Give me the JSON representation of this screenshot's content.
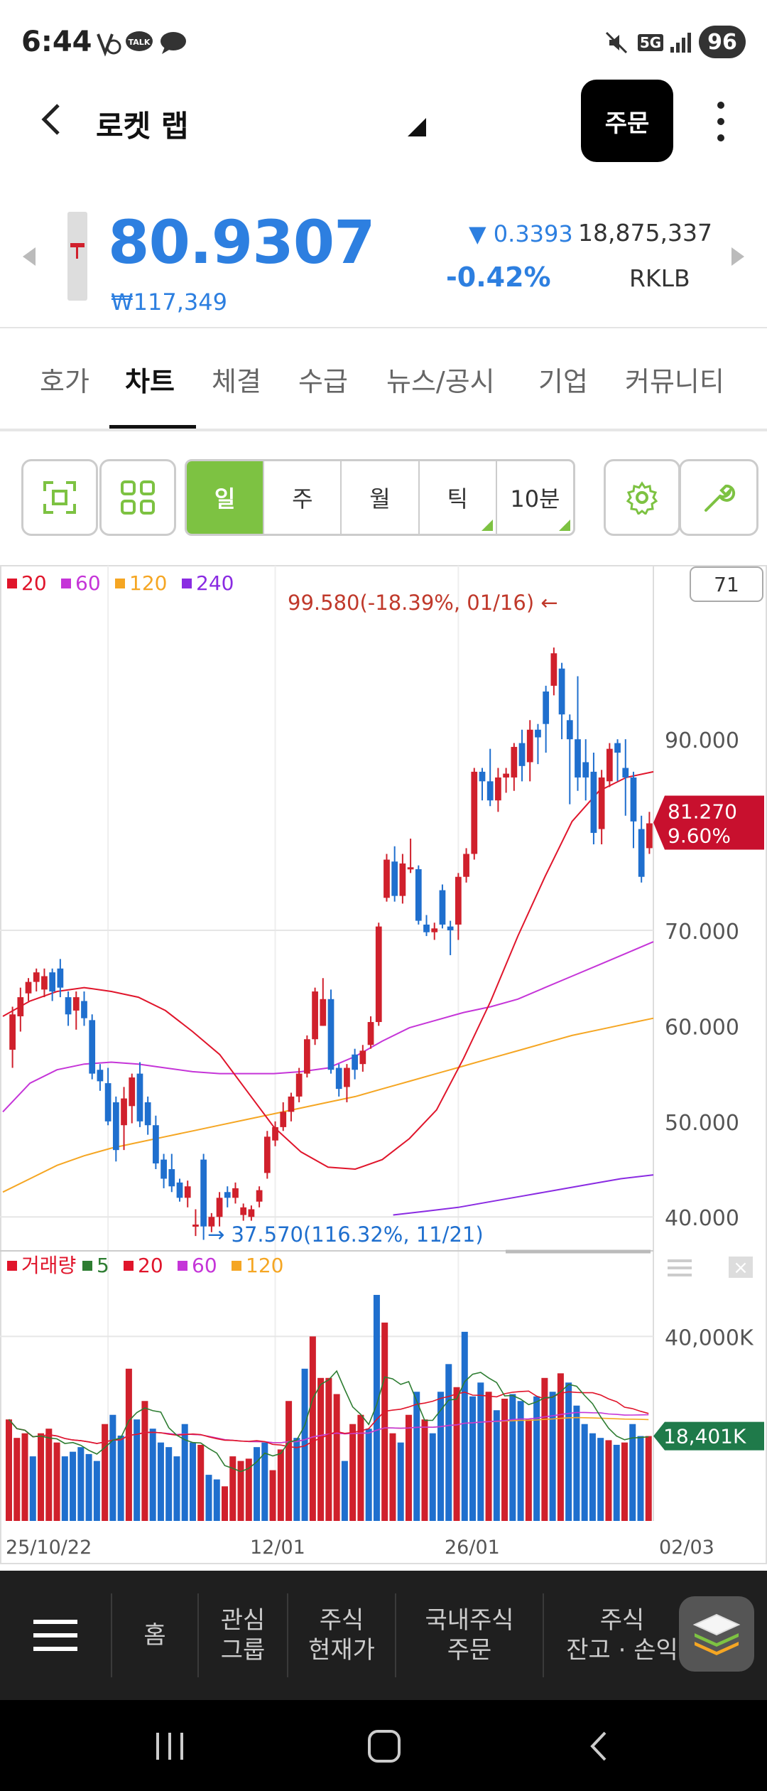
{
  "status": {
    "time": "6:44",
    "battery": "96",
    "signal": "5G"
  },
  "header": {
    "title": "로켓 랩",
    "order_label": "주문"
  },
  "quote": {
    "price": "80.9307",
    "krw": "₩117,349",
    "change": "▼ 0.3393",
    "change_pct": "-0.42%",
    "volume": "18,875,337",
    "ticker": "RKLB"
  },
  "tabs": [
    "호가",
    "차트",
    "체결",
    "수급",
    "뉴스/공시",
    "기업",
    "커뮤니티"
  ],
  "period": {
    "options": [
      "일",
      "주",
      "월",
      "틱",
      "10분"
    ],
    "selected": "일"
  },
  "chart_data": {
    "type": "candlestick",
    "ma_legend": [
      {
        "label": "20",
        "color": "#e0152b"
      },
      {
        "label": "60",
        "color": "#c535d8"
      },
      {
        "label": "120",
        "color": "#f5a623"
      },
      {
        "label": "240",
        "color": "#8a2be2"
      }
    ],
    "count_box": "71",
    "yticks": [
      "90.000",
      "70.000",
      "60.000",
      "50.000",
      "40.000"
    ],
    "ytick_values": [
      90,
      70,
      60,
      50,
      40
    ],
    "ylim": [
      36,
      104
    ],
    "current": {
      "price": "81.270",
      "pct": "9.60%"
    },
    "high_annotation": "99.580(-18.39%, 01/16) ←",
    "low_annotation": "→ 37.570(116.32%, 11/21)",
    "xticks": [
      "25/10/22",
      "12/01",
      "26/01",
      "02/03"
    ],
    "candles": [
      [
        57.5,
        61.2,
        55.6,
        62.0
      ],
      [
        61.0,
        63.0,
        59.4,
        64.0
      ],
      [
        63.4,
        64.6,
        62.6,
        65.0
      ],
      [
        64.6,
        65.6,
        63.6,
        66.0
      ],
      [
        63.8,
        65.2,
        63.0,
        66.0
      ],
      [
        65.6,
        63.6,
        62.6,
        66.0
      ],
      [
        66.0,
        64.0,
        63.0,
        67.0
      ],
      [
        63.0,
        61.2,
        60.0,
        63.6
      ],
      [
        61.6,
        63.0,
        59.6,
        63.6
      ],
      [
        62.6,
        60.8,
        60.0,
        63.6
      ],
      [
        60.6,
        55.0,
        54.4,
        61.2
      ],
      [
        55.4,
        54.2,
        53.2,
        56.0
      ],
      [
        54.0,
        50.0,
        49.6,
        55.6
      ],
      [
        52.0,
        47.0,
        45.8,
        52.6
      ],
      [
        49.6,
        52.4,
        47.0,
        53.6
      ],
      [
        51.6,
        54.6,
        49.8,
        55.0
      ],
      [
        55.0,
        50.0,
        49.4,
        56.2
      ],
      [
        52.0,
        49.6,
        48.6,
        52.6
      ],
      [
        49.6,
        45.6,
        45.0,
        50.6
      ],
      [
        46.0,
        44.0,
        43.0,
        46.6
      ],
      [
        45.0,
        43.2,
        42.6,
        46.6
      ],
      [
        43.6,
        42.0,
        41.6,
        44.0
      ],
      [
        42.0,
        43.2,
        41.0,
        43.8
      ],
      [
        39.2,
        39.2,
        38.0,
        40.8
      ],
      [
        46.0,
        39.0,
        37.6,
        46.6
      ],
      [
        39.0,
        40.0,
        38.4,
        40.4
      ],
      [
        40.0,
        42.0,
        39.0,
        42.6
      ],
      [
        42.6,
        42.0,
        41.0,
        43.2
      ],
      [
        42.0,
        43.0,
        41.4,
        43.6
      ],
      [
        40.2,
        41.0,
        39.6,
        41.4
      ],
      [
        40.0,
        40.8,
        39.6,
        41.2
      ],
      [
        41.6,
        42.8,
        41.0,
        43.2
      ],
      [
        44.6,
        48.4,
        44.0,
        49.0
      ],
      [
        48.0,
        49.4,
        47.4,
        50.0
      ],
      [
        49.4,
        51.0,
        49.0,
        52.0
      ],
      [
        51.0,
        52.6,
        50.0,
        53.0
      ],
      [
        52.6,
        55.0,
        52.0,
        55.6
      ],
      [
        55.0,
        58.6,
        54.6,
        59.0
      ],
      [
        58.6,
        63.6,
        58.0,
        64.0
      ],
      [
        60.0,
        62.8,
        60.0,
        65.0
      ],
      [
        62.8,
        55.4,
        55.0,
        63.8
      ],
      [
        55.6,
        53.4,
        52.6,
        56.0
      ],
      [
        53.6,
        55.6,
        52.0,
        56.0
      ],
      [
        57.0,
        55.4,
        54.4,
        57.6
      ],
      [
        56.0,
        57.4,
        55.2,
        58.0
      ],
      [
        58.0,
        60.4,
        57.6,
        61.0
      ],
      [
        60.4,
        70.4,
        60.0,
        70.8
      ],
      [
        73.4,
        77.4,
        73.0,
        78.0
      ],
      [
        77.2,
        73.6,
        73.0,
        78.8
      ],
      [
        73.6,
        77.0,
        72.8,
        78.0
      ],
      [
        76.6,
        76.6,
        76.0,
        79.6
      ],
      [
        76.4,
        71.0,
        70.6,
        76.8
      ],
      [
        70.6,
        69.8,
        69.4,
        71.6
      ],
      [
        69.8,
        70.2,
        69.0,
        70.8
      ],
      [
        74.2,
        70.6,
        70.2,
        74.8
      ],
      [
        70.4,
        70.0,
        67.4,
        71.0
      ],
      [
        70.6,
        75.6,
        69.0,
        76.0
      ],
      [
        75.6,
        78.0,
        75.0,
        78.6
      ],
      [
        78.0,
        86.6,
        77.4,
        87.0
      ],
      [
        86.6,
        85.6,
        83.6,
        87.0
      ],
      [
        85.6,
        83.6,
        83.0,
        89.0
      ],
      [
        83.6,
        86.0,
        82.4,
        87.0
      ],
      [
        86.0,
        86.4,
        84.4,
        87.0
      ],
      [
        86.0,
        89.2,
        84.6,
        89.6
      ],
      [
        89.6,
        87.2,
        85.6,
        91.0
      ],
      [
        87.6,
        91.0,
        85.6,
        92.0
      ],
      [
        91.0,
        90.2,
        87.4,
        91.6
      ],
      [
        95.0,
        91.6,
        88.6,
        95.6
      ],
      [
        95.6,
        99.0,
        94.6,
        99.6
      ],
      [
        97.4,
        92.6,
        90.0,
        98.0
      ],
      [
        92.0,
        90.0,
        83.2,
        92.6
      ],
      [
        90.0,
        86.0,
        84.6,
        96.6
      ],
      [
        87.6,
        86.0,
        83.6,
        90.0
      ],
      [
        86.6,
        80.2,
        79.0,
        88.6
      ],
      [
        80.6,
        86.0,
        79.0,
        86.8
      ],
      [
        85.6,
        89.0,
        85.0,
        89.6
      ],
      [
        89.6,
        88.6,
        85.6,
        90.0
      ],
      [
        87.0,
        86.0,
        82.0,
        90.0
      ],
      [
        86.0,
        81.4,
        78.6,
        86.6
      ],
      [
        80.6,
        75.6,
        75.0,
        82.0
      ],
      [
        78.6,
        81.2,
        78.0,
        82.4
      ]
    ],
    "ma20": [
      61.0,
      62.6,
      63.6,
      64.0,
      63.6,
      63.0,
      61.6,
      59.4,
      57.0,
      53.2,
      49.4,
      46.8,
      45.2,
      45.0,
      46.0,
      48.2,
      51.2,
      56.6,
      62.6,
      69.4,
      75.6,
      81.4,
      84.6,
      86.0,
      86.6
    ],
    "ma60": [
      51.0,
      54.0,
      55.4,
      56.0,
      56.2,
      56.0,
      55.6,
      55.2,
      55.0,
      55.0,
      55.0,
      55.2,
      55.6,
      56.8,
      58.4,
      59.8,
      60.6,
      61.4,
      62.0,
      62.8,
      64.0,
      65.2,
      66.4,
      67.6,
      68.8
    ],
    "ma120": [
      42.6,
      44.0,
      45.4,
      46.4,
      47.2,
      47.8,
      48.4,
      49.0,
      49.6,
      50.2,
      50.8,
      51.4,
      52.0,
      52.6,
      53.4,
      54.2,
      55.0,
      55.8,
      56.6,
      57.4,
      58.2,
      59.0,
      59.6,
      60.2,
      60.8
    ],
    "ma240": [
      40.2,
      40.6,
      41.0,
      41.6,
      42.2,
      42.8,
      43.4,
      44.0,
      44.4
    ],
    "volume": {
      "legend": [
        {
          "label": "거래량",
          "color": "#e0152b"
        },
        {
          "label": "5",
          "color": "#2e7d32"
        },
        {
          "label": "20",
          "color": "#e0152b"
        },
        {
          "label": "60",
          "color": "#c535d8"
        },
        {
          "label": "120",
          "color": "#f5a623"
        }
      ],
      "ytick": "40,000K",
      "ytick_value": 40000,
      "ymax": 53000,
      "current": "18,401K",
      "bars": [
        22000,
        18000,
        19000,
        14000,
        19000,
        20000,
        17000,
        14000,
        15000,
        16000,
        14500,
        13000,
        21000,
        23000,
        18500,
        33000,
        22000,
        26000,
        20000,
        17000,
        16000,
        14000,
        21000,
        17000,
        16500,
        10000,
        9000,
        7500,
        14000,
        13000,
        13500,
        16000,
        17000,
        11000,
        15500,
        26000,
        18000,
        33000,
        40000,
        31000,
        31000,
        27500,
        13000,
        21000,
        23000,
        20000,
        49000,
        43000,
        19000,
        17000,
        23000,
        28000,
        22000,
        19000,
        28000,
        34000,
        29000,
        41000,
        27000,
        30000,
        28000,
        24000,
        26500,
        27500,
        26000,
        22000,
        27000,
        31000,
        28000,
        32000,
        30000,
        25000,
        21000,
        19000,
        18000,
        17500,
        16500,
        17000,
        21000,
        18400,
        18401
      ],
      "bar_colors": "rrrbrrrbbbbbrbbrbrbbbbbbrbbrrrrbbrrrbbrrrrbrrbbrrbrbrbbbrbbbrbrbbrbrbrbbbbbrbrbbr"
    }
  },
  "bottom_nav": {
    "items": [
      "홈",
      "관심\n그룹",
      "주식\n현재가",
      "국내주식\n주문",
      "주식\n잔고 · 손익"
    ]
  }
}
